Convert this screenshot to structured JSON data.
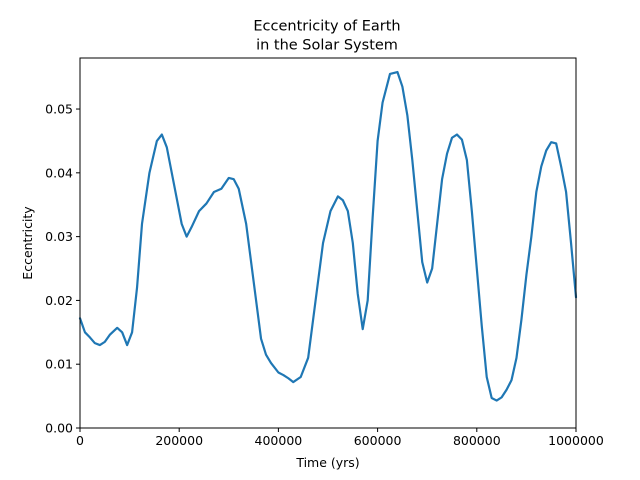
{
  "chart_data": {
    "type": "line",
    "title_lines": [
      "Eccentricity of Earth",
      "in the Solar System"
    ],
    "xlabel": "Time (yrs)",
    "ylabel": "Eccentricity",
    "xlim": [
      0,
      1000000
    ],
    "ylim": [
      0,
      0.058
    ],
    "grid": false,
    "legend": "none",
    "line_color": "#1f77b4",
    "x_ticks": [
      {
        "value": 0,
        "label": "0"
      },
      {
        "value": 200000,
        "label": "200000"
      },
      {
        "value": 400000,
        "label": "400000"
      },
      {
        "value": 600000,
        "label": "600000"
      },
      {
        "value": 800000,
        "label": "800000"
      },
      {
        "value": 1000000,
        "label": "1000000"
      }
    ],
    "y_ticks": [
      {
        "value": 0.0,
        "label": "0.00"
      },
      {
        "value": 0.01,
        "label": "0.01"
      },
      {
        "value": 0.02,
        "label": "0.02"
      },
      {
        "value": 0.03,
        "label": "0.03"
      },
      {
        "value": 0.04,
        "label": "0.04"
      },
      {
        "value": 0.05,
        "label": "0.05"
      }
    ],
    "series": [
      {
        "x": [
          0,
          10000,
          20000,
          30000,
          40000,
          50000,
          60000,
          75000,
          85000,
          95000,
          105000,
          115000,
          125000,
          140000,
          155000,
          165000,
          175000,
          190000,
          205000,
          215000,
          225000,
          240000,
          255000,
          270000,
          285000,
          300000,
          310000,
          320000,
          335000,
          350000,
          365000,
          375000,
          385000,
          400000,
          410000,
          420000,
          430000,
          445000,
          460000,
          475000,
          490000,
          505000,
          520000,
          530000,
          540000,
          550000,
          560000,
          570000,
          580000,
          590000,
          600000,
          610000,
          625000,
          640000,
          650000,
          660000,
          670000,
          680000,
          690000,
          700000,
          710000,
          720000,
          730000,
          740000,
          750000,
          760000,
          770000,
          780000,
          790000,
          800000,
          810000,
          820000,
          830000,
          840000,
          850000,
          860000,
          870000,
          880000,
          890000,
          900000,
          910000,
          920000,
          930000,
          940000,
          950000,
          960000,
          970000,
          980000,
          990000,
          1000000
        ],
        "y": [
          0.0172,
          0.015,
          0.0142,
          0.0133,
          0.013,
          0.0135,
          0.0146,
          0.0157,
          0.015,
          0.013,
          0.015,
          0.022,
          0.032,
          0.04,
          0.045,
          0.046,
          0.044,
          0.038,
          0.032,
          0.03,
          0.0315,
          0.034,
          0.0352,
          0.037,
          0.0375,
          0.0392,
          0.039,
          0.0375,
          0.032,
          0.023,
          0.014,
          0.0115,
          0.0102,
          0.0087,
          0.0083,
          0.0078,
          0.0072,
          0.008,
          0.011,
          0.02,
          0.029,
          0.034,
          0.0363,
          0.0357,
          0.034,
          0.029,
          0.021,
          0.0155,
          0.02,
          0.033,
          0.045,
          0.051,
          0.0555,
          0.0558,
          0.0535,
          0.049,
          0.042,
          0.034,
          0.026,
          0.0228,
          0.025,
          0.032,
          0.039,
          0.043,
          0.0455,
          0.046,
          0.0452,
          0.042,
          0.034,
          0.025,
          0.016,
          0.008,
          0.0047,
          0.0043,
          0.0048,
          0.006,
          0.0075,
          0.011,
          0.017,
          0.024,
          0.03,
          0.037,
          0.041,
          0.0435,
          0.0448,
          0.0446,
          0.041,
          0.037,
          0.029,
          0.0205
        ]
      }
    ]
  }
}
